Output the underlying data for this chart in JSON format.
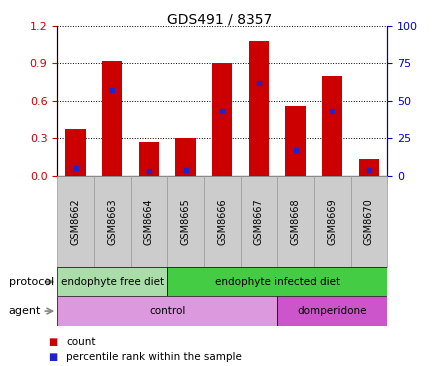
{
  "title": "GDS491 / 8357",
  "samples": [
    "GSM8662",
    "GSM8663",
    "GSM8664",
    "GSM8665",
    "GSM8666",
    "GSM8667",
    "GSM8668",
    "GSM8669",
    "GSM8670"
  ],
  "counts": [
    0.37,
    0.92,
    0.27,
    0.3,
    0.9,
    1.08,
    0.56,
    0.8,
    0.13
  ],
  "percentile_ranks": [
    5,
    57,
    3,
    4,
    43,
    62,
    17,
    43,
    4
  ],
  "ylim_left": [
    0,
    1.2
  ],
  "ylim_right": [
    0,
    100
  ],
  "yticks_left": [
    0,
    0.3,
    0.6,
    0.9,
    1.2
  ],
  "yticks_right": [
    0,
    25,
    50,
    75,
    100
  ],
  "bar_color": "#cc0000",
  "dot_color": "#2222cc",
  "grid_color": "#000000",
  "bg_color": "#ffffff",
  "protocol_groups": [
    {
      "label": "endophyte free diet",
      "start": 0,
      "end": 3,
      "color": "#aaddaa"
    },
    {
      "label": "endophyte infected diet",
      "start": 3,
      "end": 9,
      "color": "#44cc44"
    }
  ],
  "agent_groups": [
    {
      "label": "control",
      "start": 0,
      "end": 6,
      "color": "#dd99dd"
    },
    {
      "label": "domperidone",
      "start": 6,
      "end": 9,
      "color": "#cc55cc"
    }
  ],
  "xlabel_protocol": "protocol",
  "xlabel_agent": "agent",
  "legend_count_label": "count",
  "legend_pct_label": "percentile rank within the sample",
  "tick_label_color_left": "#cc0000",
  "tick_label_color_right": "#0000cc",
  "sample_bg_color": "#cccccc",
  "sample_border_color": "#999999",
  "arrow_color": "#888888"
}
